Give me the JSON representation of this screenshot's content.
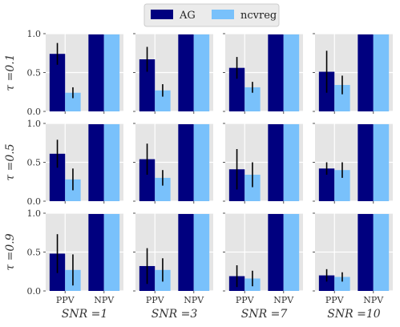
{
  "chart_data": {
    "type": "bar",
    "legend": {
      "position": "top-center",
      "entries": [
        {
          "name": "AG",
          "color": "#00007f"
        },
        {
          "name": "ncvreg",
          "color": "#79c1fb"
        }
      ]
    },
    "categories": [
      "PPV",
      "NPV"
    ],
    "ylim": [
      0,
      1
    ],
    "yticks": [
      "0.0",
      "0.5",
      "1.0"
    ],
    "grid": true,
    "background": "#e5e5e5",
    "columns": [
      "SNR =1",
      "SNR =3",
      "SNR =7",
      "SNR =10"
    ],
    "rows": [
      "τ =0.1",
      "τ =0.5",
      "τ =0.9"
    ],
    "panels": [
      [
        {
          "AG": [
            0.74,
            0.99
          ],
          "AG_err": [
            0.14,
            0
          ],
          "ncvreg": [
            0.24,
            0.99
          ],
          "ncvreg_err": [
            0.07,
            0
          ]
        },
        {
          "AG": [
            0.67,
            0.99
          ],
          "AG_err": [
            0.16,
            0
          ],
          "ncvreg": [
            0.27,
            0.99
          ],
          "ncvreg_err": [
            0.08,
            0
          ]
        },
        {
          "AG": [
            0.56,
            0.99
          ],
          "AG_err": [
            0.14,
            0
          ],
          "ncvreg": [
            0.31,
            0.99
          ],
          "ncvreg_err": [
            0.07,
            0
          ]
        },
        {
          "AG": [
            0.51,
            0.99
          ],
          "AG_err": [
            0.27,
            0
          ],
          "ncvreg": [
            0.34,
            0.99
          ],
          "ncvreg_err": [
            0.12,
            0
          ]
        }
      ],
      [
        {
          "AG": [
            0.61,
            0.99
          ],
          "AG_err": [
            0.18,
            0
          ],
          "ncvreg": [
            0.28,
            0.99
          ],
          "ncvreg_err": [
            0.14,
            0
          ]
        },
        {
          "AG": [
            0.54,
            0.99
          ],
          "AG_err": [
            0.2,
            0
          ],
          "ncvreg": [
            0.3,
            0.99
          ],
          "ncvreg_err": [
            0.1,
            0
          ]
        },
        {
          "AG": [
            0.41,
            0.99
          ],
          "AG_err": [
            0.26,
            0
          ],
          "ncvreg": [
            0.34,
            0.99
          ],
          "ncvreg_err": [
            0.16,
            0
          ]
        },
        {
          "AG": [
            0.42,
            0.99
          ],
          "AG_err": [
            0.08,
            0
          ],
          "ncvreg": [
            0.4,
            0.99
          ],
          "ncvreg_err": [
            0.1,
            0
          ]
        }
      ],
      [
        {
          "AG": [
            0.48,
            0.99
          ],
          "AG_err": [
            0.25,
            0
          ],
          "ncvreg": [
            0.27,
            0.99
          ],
          "ncvreg_err": [
            0.2,
            0
          ]
        },
        {
          "AG": [
            0.32,
            0.99
          ],
          "AG_err": [
            0.23,
            0
          ],
          "ncvreg": [
            0.27,
            0.99
          ],
          "ncvreg_err": [
            0.15,
            0
          ]
        },
        {
          "AG": [
            0.19,
            0.99
          ],
          "AG_err": [
            0.14,
            0
          ],
          "ncvreg": [
            0.16,
            0.99
          ],
          "ncvreg_err": [
            0.1,
            0
          ]
        },
        {
          "AG": [
            0.2,
            0.99
          ],
          "AG_err": [
            0.08,
            0
          ],
          "ncvreg": [
            0.18,
            0.99
          ],
          "ncvreg_err": [
            0.06,
            0
          ]
        }
      ]
    ]
  }
}
